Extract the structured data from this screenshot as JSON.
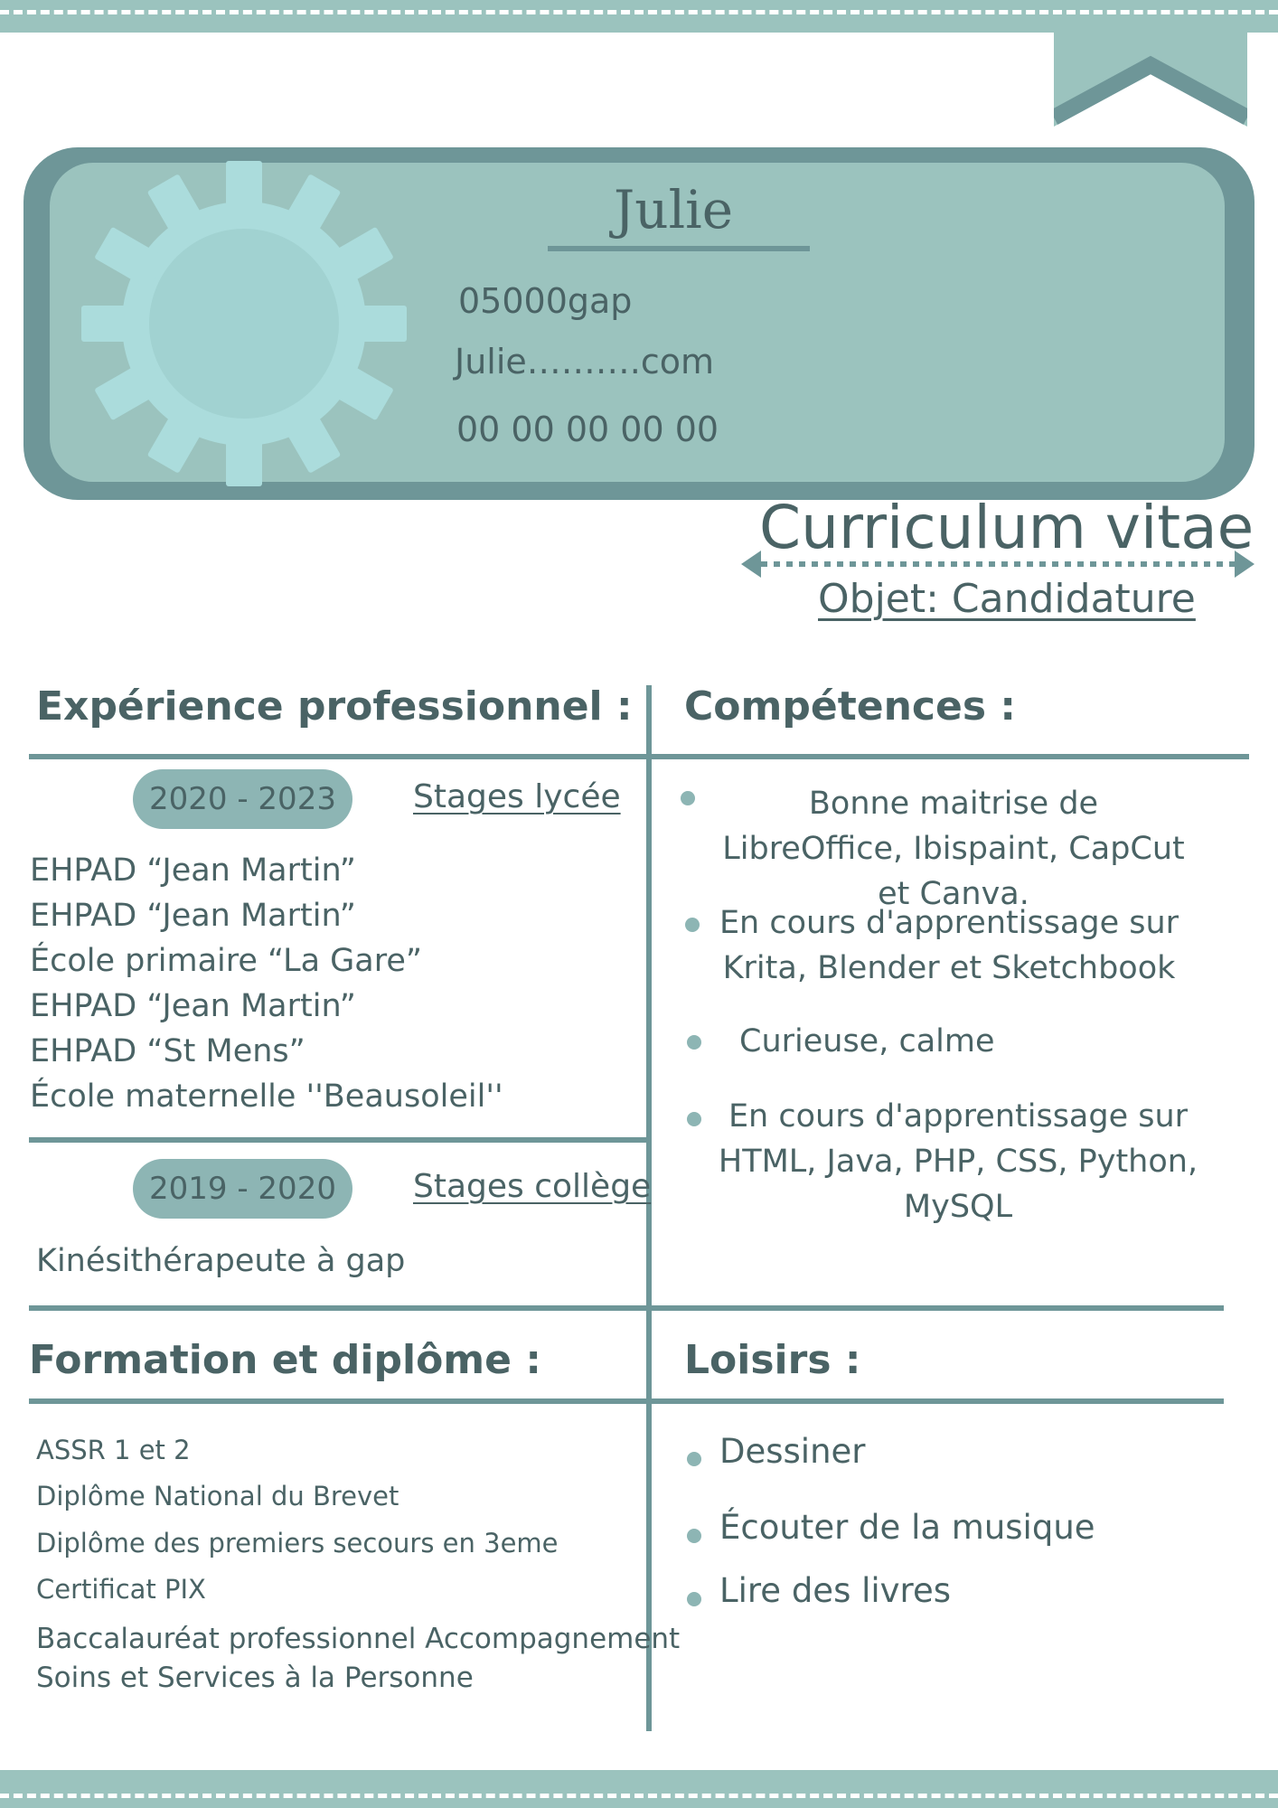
{
  "header": {
    "name": "Julie",
    "address": "05000gap",
    "email": "Julie……….com",
    "phone": "00 00 00 00 00"
  },
  "cv": {
    "title": "Curriculum vitae",
    "object": "Objet: Candidature"
  },
  "experience": {
    "title": "Expérience professionnel :",
    "groups": [
      {
        "period": "2020 - 2023",
        "label": "Stages lycée",
        "items": [
          "EHPAD “Jean Martin”",
          "EHPAD “Jean Martin”",
          "École primaire “La Gare”",
          "EHPAD “Jean Martin”",
          "EHPAD “St Mens”",
          "École maternelle ''Beausoleil''"
        ]
      },
      {
        "period": "2019 - 2020",
        "label": "Stages collège",
        "items": [
          "Kinésithérapeute à gap"
        ]
      }
    ]
  },
  "skills": {
    "title": "Compétences :",
    "items": [
      "Bonne maitrise de LibreOffice, Ibispaint, CapCut et Canva.",
      "En cours d'apprentissage sur Krita, Blender et Sketchbook",
      "Curieuse, calme",
      "En cours d'apprentissage sur HTML, Java, PHP, CSS, Python, MySQL"
    ]
  },
  "education": {
    "title": "Formation et diplôme :",
    "items": [
      "ASSR 1 et 2",
      "Diplôme National du Brevet",
      "Diplôme des premiers secours en 3eme",
      "Certificat PIX",
      "Baccalauréat professionnel Accompagnement",
      "Soins et Services à la Personne"
    ]
  },
  "hobbies": {
    "title": "Loisirs :",
    "items": [
      "Dessiner",
      "Écouter de la musique",
      "Lire des livres"
    ]
  },
  "colors": {
    "band": "#9bc3be",
    "dark_teal": "#6e9698",
    "pill": "#8db5b4",
    "gear": "#abdcdc",
    "text": "#4a6365"
  }
}
